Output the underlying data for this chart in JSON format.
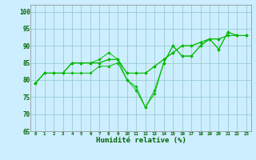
{
  "title": "",
  "xlabel": "Humidité relative (%)",
  "ylabel": "",
  "background_color": "#cceeff",
  "grid_color": "#99cccc",
  "line_color": "#00bb00",
  "xlim": [
    -0.5,
    23.5
  ],
  "ylim": [
    65,
    102
  ],
  "yticks": [
    65,
    70,
    75,
    80,
    85,
    90,
    95,
    100
  ],
  "xticks": [
    0,
    1,
    2,
    3,
    4,
    5,
    6,
    7,
    8,
    9,
    10,
    11,
    12,
    13,
    14,
    15,
    16,
    17,
    18,
    19,
    20,
    21,
    22,
    23
  ],
  "series": [
    [
      79,
      82,
      82,
      82,
      85,
      85,
      85,
      86,
      88,
      86,
      80,
      77,
      72,
      77,
      85,
      90,
      87,
      87,
      90,
      92,
      89,
      94,
      93,
      93
    ],
    [
      79,
      82,
      82,
      82,
      85,
      85,
      85,
      85,
      86,
      86,
      82,
      82,
      82,
      84,
      86,
      88,
      90,
      90,
      91,
      92,
      92,
      93,
      93,
      93
    ],
    [
      79,
      82,
      82,
      82,
      85,
      85,
      85,
      85,
      86,
      86,
      82,
      82,
      82,
      84,
      86,
      88,
      90,
      90,
      91,
      92,
      92,
      93,
      93,
      93
    ],
    [
      79,
      82,
      82,
      82,
      82,
      82,
      82,
      84,
      84,
      85,
      80,
      78,
      72,
      76,
      85,
      90,
      87,
      87,
      90,
      92,
      89,
      94,
      93,
      93
    ]
  ]
}
